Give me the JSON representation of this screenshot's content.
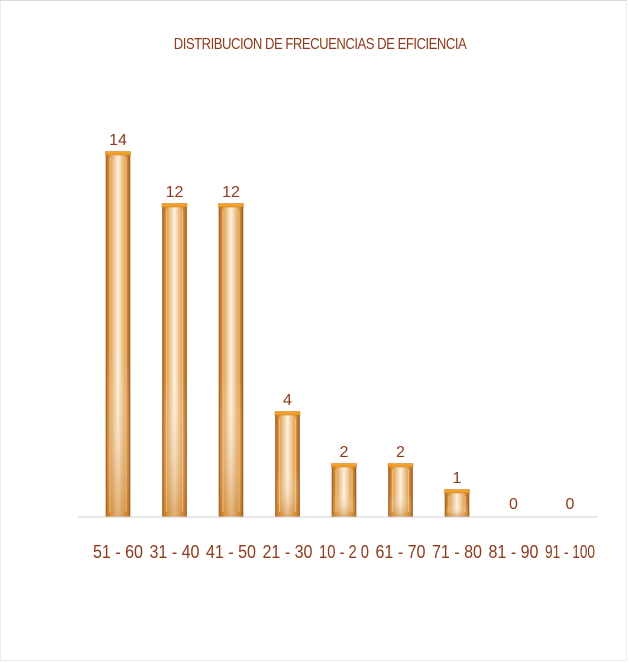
{
  "chart_data": {
    "type": "bar",
    "title": "DISTRIBUCION  DE FRECUENCIAS DE EFICIENCIA",
    "categories": [
      "51 - 60",
      "31 - 40",
      "41 - 50",
      "21 - 30",
      "10 - 2 0",
      "61 - 70",
      "71 - 80",
      "81 - 90",
      "91 - 100"
    ],
    "values": [
      14,
      12,
      12,
      4,
      2,
      2,
      1,
      0,
      0
    ],
    "xlabel": "",
    "ylabel": "",
    "ylim": [
      0,
      14
    ],
    "grid": false,
    "legend": "none",
    "colors": {
      "bar_dark": "#b56a1e",
      "bar_mid": "#e8a656",
      "bar_light": "#fdf1df",
      "bar_top": "#f0a020",
      "text": "#8e3a1c",
      "axis": "#d0d0d0"
    }
  }
}
